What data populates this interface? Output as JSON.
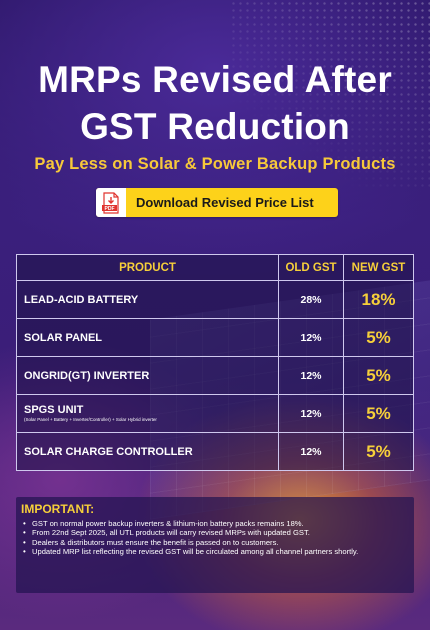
{
  "title": {
    "line1": "MRPs Revised After",
    "line2": "GST Reduction"
  },
  "subtitle": "Pay Less on Solar & Power Backup Products",
  "download_button": {
    "label": "Download Revised Price List",
    "icon_text": "PDF",
    "icon": "pdf-file-icon"
  },
  "table": {
    "headers": {
      "product": "PRODUCT",
      "old_gst": "OLD GST",
      "new_gst": "NEW GST"
    },
    "rows": [
      {
        "product": "LEAD-ACID BATTERY",
        "note": "",
        "old_gst": "28%",
        "new_gst": "18%"
      },
      {
        "product": "SOLAR PANEL",
        "note": "",
        "old_gst": "12%",
        "new_gst": "5%"
      },
      {
        "product": "ONGRID(GT) INVERTER",
        "note": "",
        "old_gst": "12%",
        "new_gst": "5%"
      },
      {
        "product": "SPGS UNIT",
        "note": "(Solar Panel + Battery + Inverter/Controller) + Solar Hybrid inverter",
        "old_gst": "12%",
        "new_gst": "5%"
      },
      {
        "product": "SOLAR CHARGE CONTROLLER",
        "note": "",
        "old_gst": "12%",
        "new_gst": "5%"
      }
    ]
  },
  "important": {
    "heading": "IMPORTANT:",
    "items": [
      "GST on normal power backup inverters & lithium-ion battery packs remains 18%.",
      "From 22nd Sept 2025, all UTL products will carry revised MRPs with updated GST.",
      "Dealers & distributors must ensure the benefit is passed on to customers.",
      "Updated MRP list reflecting the revised GST will be circulated among all channel partners shortly."
    ]
  },
  "colors": {
    "background": "#2c1766",
    "accent_yellow": "#f6cf3a",
    "button_yellow": "#fdd21a",
    "pdf_red": "#e0332f"
  }
}
